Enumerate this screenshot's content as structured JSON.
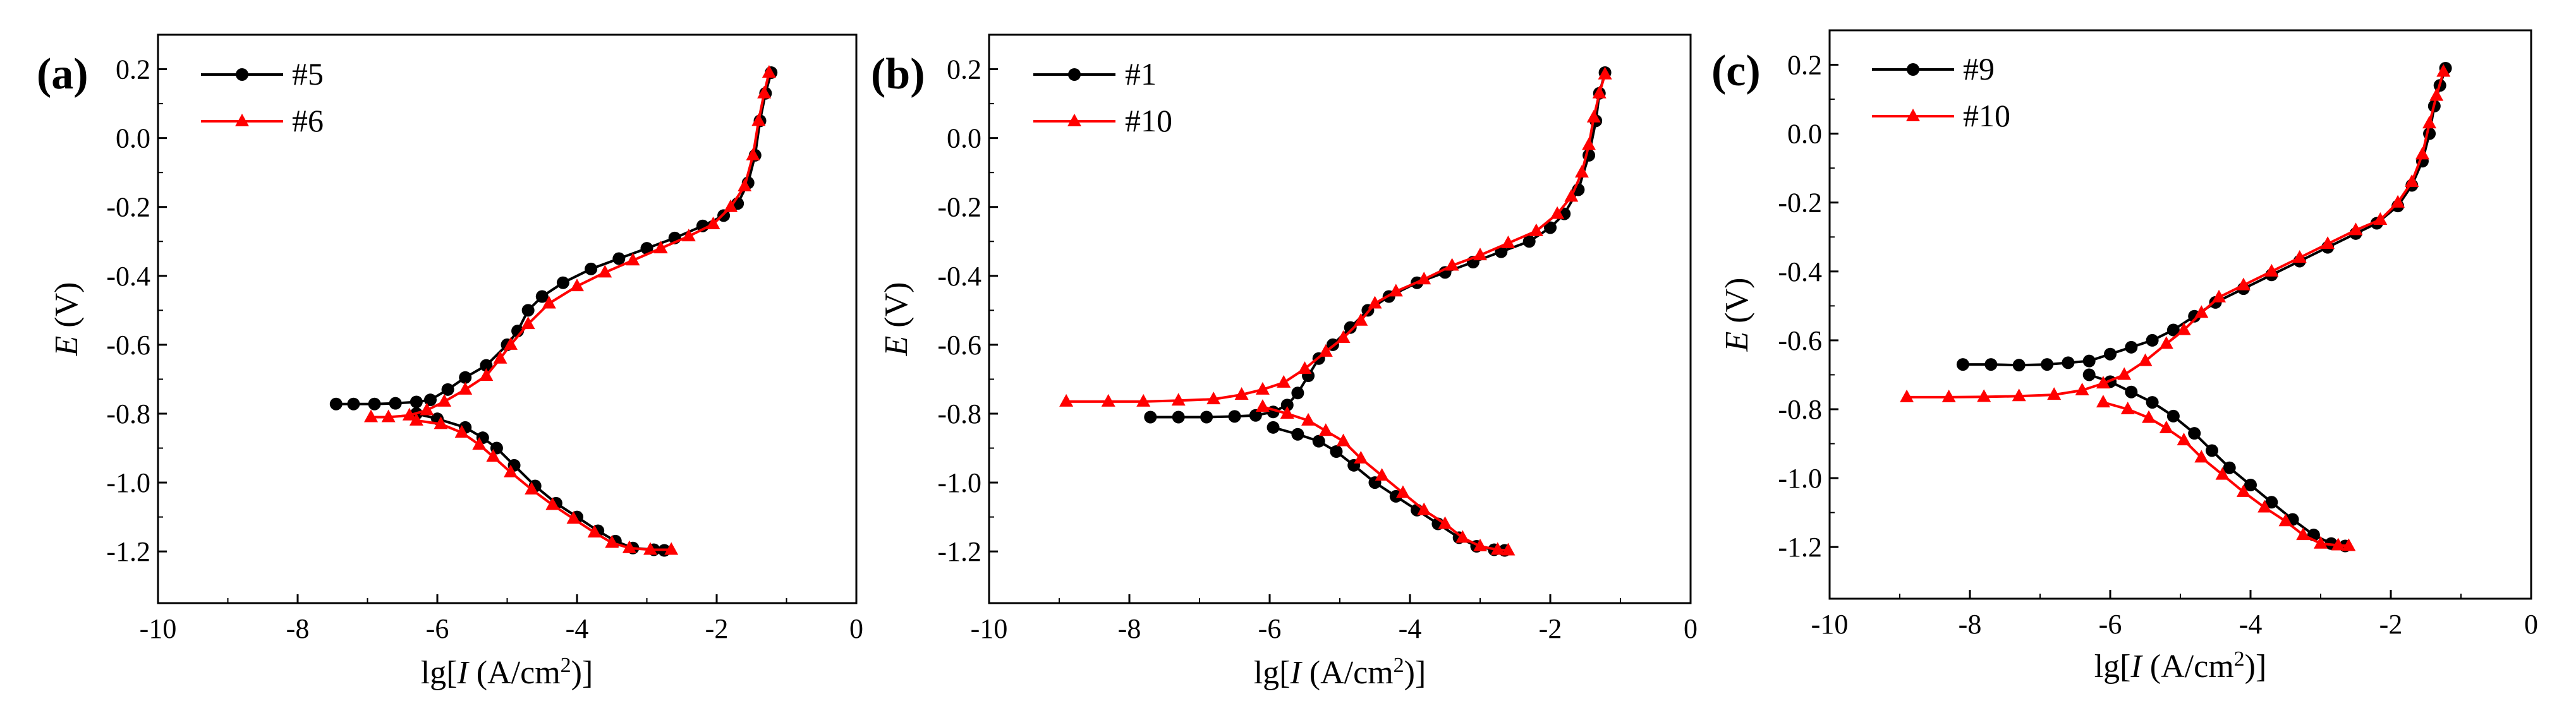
{
  "chart_data": [
    {
      "panel_label": "(a)",
      "type": "line",
      "xlabel": "lg[I (A/cm²)]",
      "ylabel": "E (V)",
      "xlim": [
        -10,
        0
      ],
      "ylim": [
        -1.35,
        0.3
      ],
      "xticks": [
        "-10",
        "-8",
        "-6",
        "-4",
        "-2",
        "0"
      ],
      "yticks": [
        "-1.2",
        "-1.0",
        "-0.8",
        "-0.6",
        "-0.4",
        "-0.2",
        "0.0",
        "0.2"
      ],
      "legend_position": "top-left",
      "series": [
        {
          "name": "#5",
          "color": "#000000",
          "marker": "circle",
          "anodic": [
            [
              -7.45,
              -0.772
            ],
            [
              -7.2,
              -0.772
            ],
            [
              -6.9,
              -0.772
            ],
            [
              -6.6,
              -0.77
            ],
            [
              -6.3,
              -0.766
            ],
            [
              -6.1,
              -0.76
            ],
            [
              -5.85,
              -0.73
            ],
            [
              -5.6,
              -0.695
            ],
            [
              -5.3,
              -0.66
            ],
            [
              -5.0,
              -0.6
            ],
            [
              -4.85,
              -0.56
            ],
            [
              -4.7,
              -0.5
            ],
            [
              -4.5,
              -0.46
            ],
            [
              -4.2,
              -0.42
            ],
            [
              -3.8,
              -0.38
            ],
            [
              -3.4,
              -0.35
            ],
            [
              -3.0,
              -0.32
            ],
            [
              -2.6,
              -0.29
            ],
            [
              -2.2,
              -0.255
            ],
            [
              -1.9,
              -0.225
            ],
            [
              -1.7,
              -0.19
            ],
            [
              -1.55,
              -0.13
            ],
            [
              -1.45,
              -0.05
            ],
            [
              -1.38,
              0.05
            ],
            [
              -1.3,
              0.13
            ],
            [
              -1.22,
              0.19
            ]
          ],
          "cathodic": [
            [
              -6.3,
              -0.8
            ],
            [
              -6.0,
              -0.815
            ],
            [
              -5.6,
              -0.84
            ],
            [
              -5.35,
              -0.87
            ],
            [
              -5.15,
              -0.9
            ],
            [
              -4.9,
              -0.95
            ],
            [
              -4.6,
              -1.01
            ],
            [
              -4.3,
              -1.06
            ],
            [
              -4.0,
              -1.1
            ],
            [
              -3.7,
              -1.14
            ],
            [
              -3.45,
              -1.17
            ],
            [
              -3.2,
              -1.19
            ],
            [
              -2.9,
              -1.195
            ],
            [
              -2.75,
              -1.197
            ]
          ]
        },
        {
          "name": "#6",
          "color": "#ff0000",
          "marker": "triangle",
          "anodic": [
            [
              -6.95,
              -0.81
            ],
            [
              -6.7,
              -0.81
            ],
            [
              -6.4,
              -0.805
            ],
            [
              -6.15,
              -0.79
            ],
            [
              -5.9,
              -0.765
            ],
            [
              -5.6,
              -0.73
            ],
            [
              -5.3,
              -0.69
            ],
            [
              -5.1,
              -0.64
            ],
            [
              -4.95,
              -0.6
            ],
            [
              -4.7,
              -0.54
            ],
            [
              -4.4,
              -0.48
            ],
            [
              -4.0,
              -0.43
            ],
            [
              -3.6,
              -0.39
            ],
            [
              -3.2,
              -0.355
            ],
            [
              -2.8,
              -0.32
            ],
            [
              -2.4,
              -0.285
            ],
            [
              -2.05,
              -0.25
            ],
            [
              -1.8,
              -0.2
            ],
            [
              -1.6,
              -0.14
            ],
            [
              -1.48,
              -0.05
            ],
            [
              -1.4,
              0.05
            ],
            [
              -1.32,
              0.13
            ],
            [
              -1.25,
              0.19
            ]
          ],
          "cathodic": [
            [
              -6.3,
              -0.82
            ],
            [
              -5.95,
              -0.83
            ],
            [
              -5.65,
              -0.855
            ],
            [
              -5.4,
              -0.89
            ],
            [
              -5.2,
              -0.925
            ],
            [
              -4.95,
              -0.97
            ],
            [
              -4.65,
              -1.02
            ],
            [
              -4.35,
              -1.065
            ],
            [
              -4.05,
              -1.105
            ],
            [
              -3.75,
              -1.145
            ],
            [
              -3.5,
              -1.175
            ],
            [
              -3.25,
              -1.19
            ],
            [
              -2.95,
              -1.195
            ],
            [
              -2.65,
              -1.195
            ]
          ]
        }
      ]
    },
    {
      "panel_label": "(b)",
      "type": "line",
      "xlabel": "lg[I (A/cm²)]",
      "ylabel": "E (V)",
      "xlim": [
        -10,
        0
      ],
      "ylim": [
        -1.35,
        0.3
      ],
      "xticks": [
        "-10",
        "-8",
        "-6",
        "-4",
        "-2",
        "0"
      ],
      "yticks": [
        "-1.2",
        "-1.0",
        "-0.8",
        "-0.6",
        "-0.4",
        "-0.2",
        "0.0",
        "0.2"
      ],
      "legend_position": "top-left",
      "series": [
        {
          "name": "#1",
          "color": "#000000",
          "marker": "circle",
          "anodic": [
            [
              -7.7,
              -0.81
            ],
            [
              -7.3,
              -0.81
            ],
            [
              -6.9,
              -0.81
            ],
            [
              -6.5,
              -0.808
            ],
            [
              -6.2,
              -0.805
            ],
            [
              -5.95,
              -0.795
            ],
            [
              -5.75,
              -0.775
            ],
            [
              -5.6,
              -0.74
            ],
            [
              -5.45,
              -0.69
            ],
            [
              -5.3,
              -0.64
            ],
            [
              -5.1,
              -0.6
            ],
            [
              -4.85,
              -0.55
            ],
            [
              -4.6,
              -0.5
            ],
            [
              -4.3,
              -0.46
            ],
            [
              -3.9,
              -0.42
            ],
            [
              -3.5,
              -0.39
            ],
            [
              -3.1,
              -0.36
            ],
            [
              -2.7,
              -0.33
            ],
            [
              -2.3,
              -0.3
            ],
            [
              -2.0,
              -0.26
            ],
            [
              -1.8,
              -0.22
            ],
            [
              -1.6,
              -0.15
            ],
            [
              -1.45,
              -0.05
            ],
            [
              -1.35,
              0.05
            ],
            [
              -1.3,
              0.13
            ],
            [
              -1.22,
              0.19
            ]
          ],
          "cathodic": [
            [
              -5.95,
              -0.84
            ],
            [
              -5.6,
              -0.86
            ],
            [
              -5.3,
              -0.88
            ],
            [
              -5.05,
              -0.91
            ],
            [
              -4.8,
              -0.95
            ],
            [
              -4.5,
              -1.0
            ],
            [
              -4.2,
              -1.04
            ],
            [
              -3.9,
              -1.08
            ],
            [
              -3.6,
              -1.12
            ],
            [
              -3.3,
              -1.16
            ],
            [
              -3.05,
              -1.185
            ],
            [
              -2.8,
              -1.195
            ],
            [
              -2.65,
              -1.197
            ]
          ]
        },
        {
          "name": "#10",
          "color": "#ff0000",
          "marker": "triangle",
          "anodic": [
            [
              -8.9,
              -0.765
            ],
            [
              -8.3,
              -0.765
            ],
            [
              -7.8,
              -0.765
            ],
            [
              -7.3,
              -0.762
            ],
            [
              -6.8,
              -0.758
            ],
            [
              -6.4,
              -0.745
            ],
            [
              -6.1,
              -0.73
            ],
            [
              -5.8,
              -0.71
            ],
            [
              -5.5,
              -0.67
            ],
            [
              -5.2,
              -0.62
            ],
            [
              -4.95,
              -0.58
            ],
            [
              -4.7,
              -0.53
            ],
            [
              -4.5,
              -0.48
            ],
            [
              -4.2,
              -0.445
            ],
            [
              -3.8,
              -0.41
            ],
            [
              -3.4,
              -0.37
            ],
            [
              -3.0,
              -0.34
            ],
            [
              -2.6,
              -0.305
            ],
            [
              -2.2,
              -0.27
            ],
            [
              -1.9,
              -0.22
            ],
            [
              -1.7,
              -0.17
            ],
            [
              -1.55,
              -0.1
            ],
            [
              -1.45,
              -0.02
            ],
            [
              -1.38,
              0.06
            ],
            [
              -1.3,
              0.13
            ],
            [
              -1.22,
              0.185
            ]
          ],
          "cathodic": [
            [
              -6.1,
              -0.78
            ],
            [
              -5.75,
              -0.8
            ],
            [
              -5.45,
              -0.82
            ],
            [
              -5.2,
              -0.85
            ],
            [
              -4.95,
              -0.88
            ],
            [
              -4.7,
              -0.93
            ],
            [
              -4.4,
              -0.98
            ],
            [
              -4.1,
              -1.03
            ],
            [
              -3.8,
              -1.08
            ],
            [
              -3.5,
              -1.12
            ],
            [
              -3.25,
              -1.16
            ],
            [
              -3.0,
              -1.185
            ],
            [
              -2.75,
              -1.195
            ],
            [
              -2.6,
              -1.197
            ]
          ]
        }
      ]
    },
    {
      "panel_label": "(c)",
      "type": "line",
      "xlabel": "lg[I (A/cm²)]",
      "ylabel": "E (V)",
      "xlim": [
        -10,
        0
      ],
      "ylim": [
        -1.35,
        0.3
      ],
      "xticks": [
        "-10",
        "-8",
        "-6",
        "-4",
        "-2",
        "0"
      ],
      "yticks": [
        "-1.2",
        "-1.0",
        "-0.8",
        "-0.6",
        "-0.4",
        "-0.2",
        "0.0",
        "0.2"
      ],
      "legend_position": "top-left",
      "series": [
        {
          "name": "#9",
          "color": "#000000",
          "marker": "circle",
          "anodic": [
            [
              -8.1,
              -0.67
            ],
            [
              -7.7,
              -0.67
            ],
            [
              -7.3,
              -0.672
            ],
            [
              -6.9,
              -0.67
            ],
            [
              -6.6,
              -0.665
            ],
            [
              -6.3,
              -0.66
            ],
            [
              -6.0,
              -0.64
            ],
            [
              -5.7,
              -0.62
            ],
            [
              -5.4,
              -0.6
            ],
            [
              -5.1,
              -0.57
            ],
            [
              -4.8,
              -0.53
            ],
            [
              -4.5,
              -0.49
            ],
            [
              -4.1,
              -0.45
            ],
            [
              -3.7,
              -0.41
            ],
            [
              -3.3,
              -0.37
            ],
            [
              -2.9,
              -0.33
            ],
            [
              -2.5,
              -0.29
            ],
            [
              -2.2,
              -0.26
            ],
            [
              -1.9,
              -0.21
            ],
            [
              -1.7,
              -0.15
            ],
            [
              -1.55,
              -0.08
            ],
            [
              -1.45,
              0.0
            ],
            [
              -1.38,
              0.08
            ],
            [
              -1.3,
              0.14
            ],
            [
              -1.22,
              0.19
            ]
          ],
          "cathodic": [
            [
              -6.3,
              -0.7
            ],
            [
              -6.0,
              -0.72
            ],
            [
              -5.7,
              -0.75
            ],
            [
              -5.4,
              -0.78
            ],
            [
              -5.1,
              -0.82
            ],
            [
              -4.8,
              -0.87
            ],
            [
              -4.55,
              -0.92
            ],
            [
              -4.3,
              -0.97
            ],
            [
              -4.0,
              -1.02
            ],
            [
              -3.7,
              -1.07
            ],
            [
              -3.4,
              -1.12
            ],
            [
              -3.1,
              -1.165
            ],
            [
              -2.85,
              -1.19
            ],
            [
              -2.65,
              -1.197
            ]
          ]
        },
        {
          "name": "#10",
          "color": "#ff0000",
          "marker": "triangle",
          "anodic": [
            [
              -8.9,
              -0.765
            ],
            [
              -8.3,
              -0.765
            ],
            [
              -7.8,
              -0.764
            ],
            [
              -7.3,
              -0.762
            ],
            [
              -6.8,
              -0.758
            ],
            [
              -6.4,
              -0.745
            ],
            [
              -6.1,
              -0.725
            ],
            [
              -5.8,
              -0.7
            ],
            [
              -5.5,
              -0.66
            ],
            [
              -5.2,
              -0.61
            ],
            [
              -4.95,
              -0.57
            ],
            [
              -4.7,
              -0.52
            ],
            [
              -4.45,
              -0.475
            ],
            [
              -4.1,
              -0.44
            ],
            [
              -3.7,
              -0.4
            ],
            [
              -3.3,
              -0.36
            ],
            [
              -2.9,
              -0.32
            ],
            [
              -2.5,
              -0.28
            ],
            [
              -2.15,
              -0.25
            ],
            [
              -1.9,
              -0.2
            ],
            [
              -1.7,
              -0.14
            ],
            [
              -1.55,
              -0.06
            ],
            [
              -1.45,
              0.03
            ],
            [
              -1.35,
              0.11
            ],
            [
              -1.25,
              0.18
            ]
          ],
          "cathodic": [
            [
              -6.1,
              -0.78
            ],
            [
              -5.75,
              -0.8
            ],
            [
              -5.45,
              -0.825
            ],
            [
              -5.2,
              -0.855
            ],
            [
              -4.95,
              -0.89
            ],
            [
              -4.7,
              -0.94
            ],
            [
              -4.4,
              -0.99
            ],
            [
              -4.1,
              -1.04
            ],
            [
              -3.8,
              -1.085
            ],
            [
              -3.5,
              -1.125
            ],
            [
              -3.25,
              -1.165
            ],
            [
              -3.0,
              -1.19
            ],
            [
              -2.75,
              -1.195
            ],
            [
              -2.6,
              -1.197
            ]
          ]
        }
      ]
    }
  ]
}
